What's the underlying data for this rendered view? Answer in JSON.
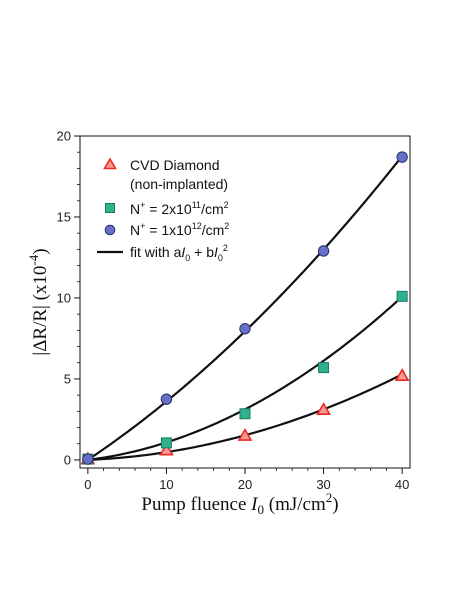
{
  "chart_data": {
    "type": "scatter",
    "title": "",
    "xlabel": "Pump fluence I0 (mJ/cm2)",
    "ylabel": "|ΔR/R| (x10-4)",
    "xlim": [
      -1,
      41
    ],
    "ylim": [
      -0.5,
      20
    ],
    "xticks": [
      0,
      10,
      20,
      30,
      40
    ],
    "yticks": [
      0,
      5,
      10,
      15,
      20
    ],
    "grid": false,
    "legend_position": "top-left",
    "series": [
      {
        "name": "CVD Diamond (non-implanted)",
        "marker": "triangle",
        "color": "#ee2a24",
        "x": [
          0,
          10,
          20,
          30,
          40
        ],
        "y": [
          0.05,
          0.6,
          1.5,
          3.1,
          5.2
        ],
        "fit": [
          0.02,
          0.0028
        ]
      },
      {
        "name": "N+ = 2x1011/cm2",
        "marker": "square",
        "color": "#2fb08f",
        "x": [
          0,
          10,
          20,
          30,
          40
        ],
        "y": [
          0.05,
          1.05,
          2.85,
          5.7,
          10.1
        ],
        "fit": [
          0.06,
          0.0048
        ]
      },
      {
        "name": "N+ = 1x1012/cm2",
        "marker": "circle",
        "color": "#6670c7",
        "x": [
          0,
          10,
          20,
          30,
          40
        ],
        "y": [
          0.05,
          3.75,
          8.1,
          12.9,
          18.7
        ],
        "fit": [
          0.325,
          0.0036
        ]
      }
    ],
    "fit_legend": "fit with aI0 + bI02"
  },
  "legend": {
    "line1": "CVD Diamond",
    "line2": "(non-implanted)",
    "n1_pre": "N",
    "n1_sup1": "+",
    "n1_mid": " = 2x10",
    "n1_sup2": "11",
    "n1_unit": "/cm",
    "n1_sup3": "2",
    "n2_pre": "N",
    "n2_sup1": "+",
    "n2_mid": " = 1x10",
    "n2_sup2": "12",
    "n2_unit": "/cm",
    "n2_sup3": "2",
    "fit_pre": "fit with a",
    "fit_I": "I",
    "fit_sub0": "0",
    "fit_mid": " + b",
    "fit_I2": "I",
    "fit_sub02": "0",
    "fit_sup2": "2"
  },
  "axes": {
    "x_title_pre": "Pump fluence ",
    "x_title_I": "I",
    "x_title_sub": "0",
    "x_title_unit": " (mJ/cm",
    "x_title_sup": "2",
    "x_title_close": ")",
    "y_title_main": "|ΔR/R| (x10",
    "y_title_sup": "-4",
    "y_title_close": ")"
  }
}
